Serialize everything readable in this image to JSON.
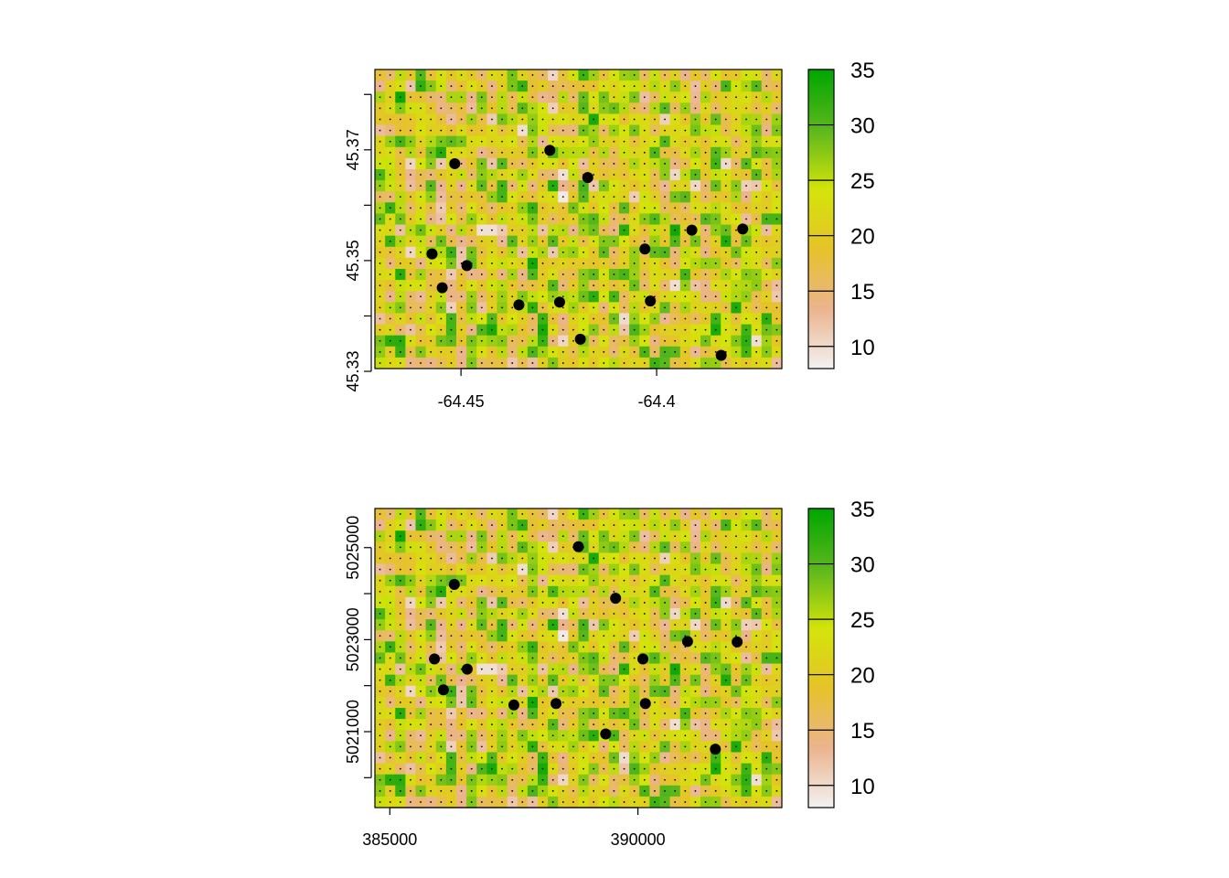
{
  "chart_data": [
    {
      "type": "heatmap",
      "crs": "geographic",
      "title": "",
      "xlabel": "",
      "ylabel": "",
      "xlim": [
        -64.472,
        -64.368
      ],
      "ylim": [
        45.3305,
        45.3845
      ],
      "x_ticks": [
        -64.45,
        -64.4
      ],
      "x_tick_labels": [
        "-64.45",
        "-64.4"
      ],
      "y_ticks": [
        45.33,
        45.34,
        45.35,
        45.36,
        45.37,
        45.38
      ],
      "y_tick_labels": [
        "45.33",
        "",
        "45.35",
        "",
        "45.37",
        ""
      ],
      "grid_cols": 40,
      "grid_rows": 27,
      "value_range": [
        8,
        35
      ],
      "colorbar": {
        "ticks": [
          10,
          15,
          20,
          25,
          30,
          35
        ],
        "tick_labels": [
          "10",
          "15",
          "20",
          "25",
          "30",
          "35"
        ]
      },
      "color_scale": [
        "#f2f2f2",
        "#ebb48e",
        "#e6c32a",
        "#d4e40a",
        "#5bb81c",
        "#00a600"
      ],
      "points": [
        {
          "x": -64.4516,
          "y": 45.3675
        },
        {
          "x": -64.4273,
          "y": 45.3699
        },
        {
          "x": -64.4176,
          "y": 45.365
        },
        {
          "x": -64.391,
          "y": 45.3555
        },
        {
          "x": -64.378,
          "y": 45.3557
        },
        {
          "x": -64.4574,
          "y": 45.3512
        },
        {
          "x": -64.4485,
          "y": 45.3491
        },
        {
          "x": -64.403,
          "y": 45.3521
        },
        {
          "x": -64.4548,
          "y": 45.3451
        },
        {
          "x": -64.4352,
          "y": 45.342
        },
        {
          "x": -64.4248,
          "y": 45.3425
        },
        {
          "x": -64.4016,
          "y": 45.3427
        },
        {
          "x": -64.4195,
          "y": 45.3358
        },
        {
          "x": -64.3835,
          "y": 45.3329
        }
      ]
    },
    {
      "type": "heatmap",
      "crs": "projected",
      "title": "",
      "xlabel": "",
      "ylabel": "",
      "xlim": [
        384700,
        392900
      ],
      "ylim": [
        5019350,
        5025850
      ],
      "x_ticks": [
        385000,
        390000
      ],
      "x_tick_labels": [
        "385000",
        "390000"
      ],
      "y_ticks": [
        5020000,
        5021000,
        5022000,
        5023000,
        5024000,
        5025000
      ],
      "y_tick_labels": [
        "",
        "5021000",
        "",
        "5023000",
        "",
        "5025000"
      ],
      "grid_cols": 40,
      "grid_rows": 27,
      "value_range": [
        8,
        35
      ],
      "colorbar": {
        "ticks": [
          10,
          15,
          20,
          25,
          30,
          35
        ],
        "tick_labels": [
          "10",
          "15",
          "20",
          "25",
          "30",
          "35"
        ]
      },
      "color_scale": [
        "#f2f2f2",
        "#ebb48e",
        "#e6c32a",
        "#d4e40a",
        "#5bb81c",
        "#00a600"
      ],
      "points": [
        {
          "x": 386300,
          "y": 5024200
        },
        {
          "x": 388800,
          "y": 5025020
        },
        {
          "x": 389550,
          "y": 5023900
        },
        {
          "x": 391000,
          "y": 5022960
        },
        {
          "x": 392000,
          "y": 5022950
        },
        {
          "x": 385900,
          "y": 5022580
        },
        {
          "x": 386560,
          "y": 5022360
        },
        {
          "x": 390100,
          "y": 5022580
        },
        {
          "x": 386080,
          "y": 5021910
        },
        {
          "x": 387500,
          "y": 5021580
        },
        {
          "x": 388350,
          "y": 5021610
        },
        {
          "x": 390150,
          "y": 5021610
        },
        {
          "x": 389350,
          "y": 5020950
        },
        {
          "x": 391560,
          "y": 5020620
        }
      ]
    }
  ]
}
